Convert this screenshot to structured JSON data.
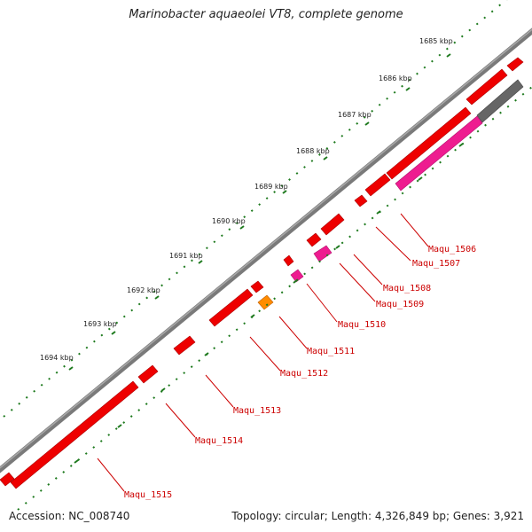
{
  "title": "Marinobacter aquaeolei VT8, complete genome",
  "footer": {
    "accession": "Accession: NC_008740",
    "summary": "Topology: circular; Length: 4,326,849 bp; Genes: 3,921"
  },
  "colors": {
    "backbone": "#7a7a7a",
    "gene_red": "#ee0000",
    "gene_pink": "#ee1c90",
    "gene_orange": "#ff8c00",
    "gene_gray": "#666666",
    "tick_green": "#1e7a1e",
    "label_red": "#cc0000"
  },
  "scale_labels": [
    "1685 kbp",
    "1686 kbp",
    "1687 kbp",
    "1688 kbp",
    "1689 kbp",
    "1690 kbp",
    "1691 kbp",
    "1692 kbp",
    "1693 kbp",
    "1694 kbp"
  ],
  "gene_labels": [
    "Maqu_1506",
    "Maqu_1507",
    "Maqu_1508",
    "Maqu_1509",
    "Maqu_1510",
    "Maqu_1511",
    "Maqu_1512",
    "Maqu_1513",
    "Maqu_1514",
    "Maqu_1515"
  ]
}
